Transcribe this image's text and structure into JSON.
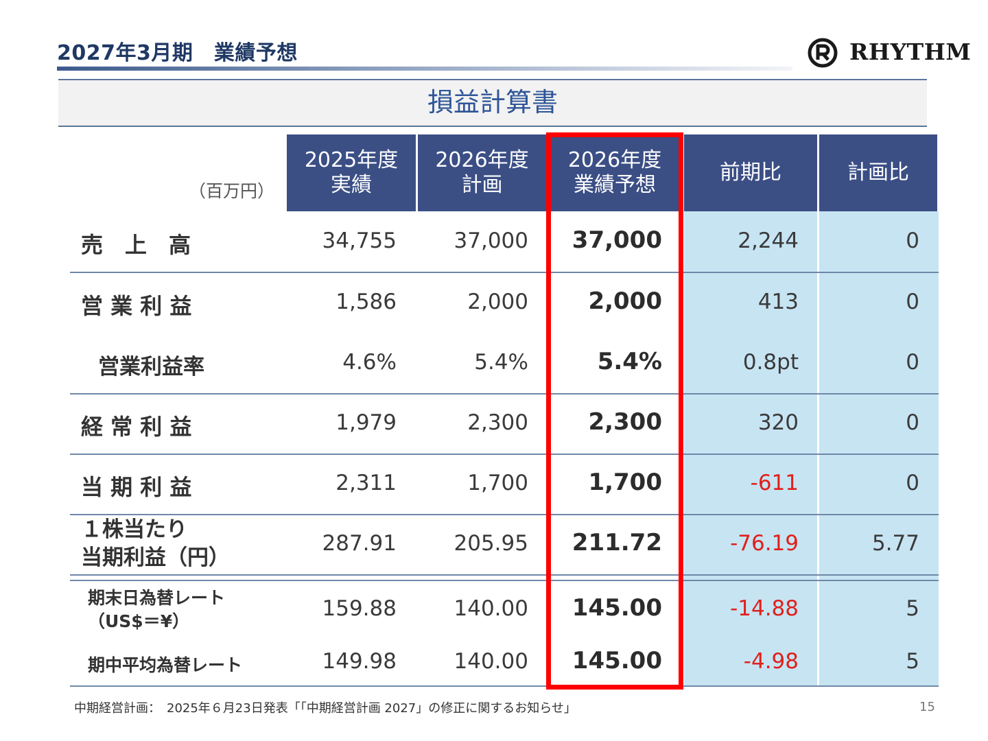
{
  "header": {
    "title": "2027年3月期　業績予想",
    "logo_text": "RHYTHM"
  },
  "section_title": "損益計算書",
  "unit": "（百万円）",
  "columns": [
    "2025年度\n実績",
    "2026年度\n計画",
    "2026年度\n業績予想",
    "前期比",
    "計画比"
  ],
  "rows": [
    {
      "label": "売　上　高",
      "values": [
        "34,755",
        "37,000",
        "37,000",
        "2,244",
        "0"
      ]
    },
    {
      "label": "営 業 利 益",
      "values": [
        "1,586",
        "2,000",
        "2,000",
        "413",
        "0"
      ]
    },
    {
      "label": "営業利益率",
      "values": [
        "4.6%",
        "5.4%",
        "5.4%",
        "0.8pt",
        "0"
      ]
    },
    {
      "label": "経 常 利 益",
      "values": [
        "1,979",
        "2,300",
        "2,300",
        "320",
        "0"
      ]
    },
    {
      "label": "当 期 利 益",
      "values": [
        "2,311",
        "1,700",
        "1,700",
        "-611",
        "0"
      ]
    },
    {
      "label": "１株当たり\n当期利益（円）",
      "values": [
        "287.91",
        "205.95",
        "211.72",
        "-76.19",
        "5.77"
      ]
    },
    {
      "label": "期末日為替レート\n（US$＝¥）",
      "values": [
        "159.88",
        "140.00",
        "145.00",
        "-14.88",
        "5"
      ]
    },
    {
      "label": "期中平均為替レート",
      "values": [
        "149.98",
        "140.00",
        "145.00",
        "-4.98",
        "5"
      ]
    }
  ],
  "colors": {
    "header_bg": "#3b4f85",
    "comparison_bg": "#c7e4f3",
    "negative": "#e0201a",
    "highlight_border": "#ff0000",
    "title": "#1f3864"
  },
  "footnote": "中期経営計画：　2025年６月23日発表「「中期経営計画 2027」の修正に関するお知らせ」",
  "page_number": "15"
}
